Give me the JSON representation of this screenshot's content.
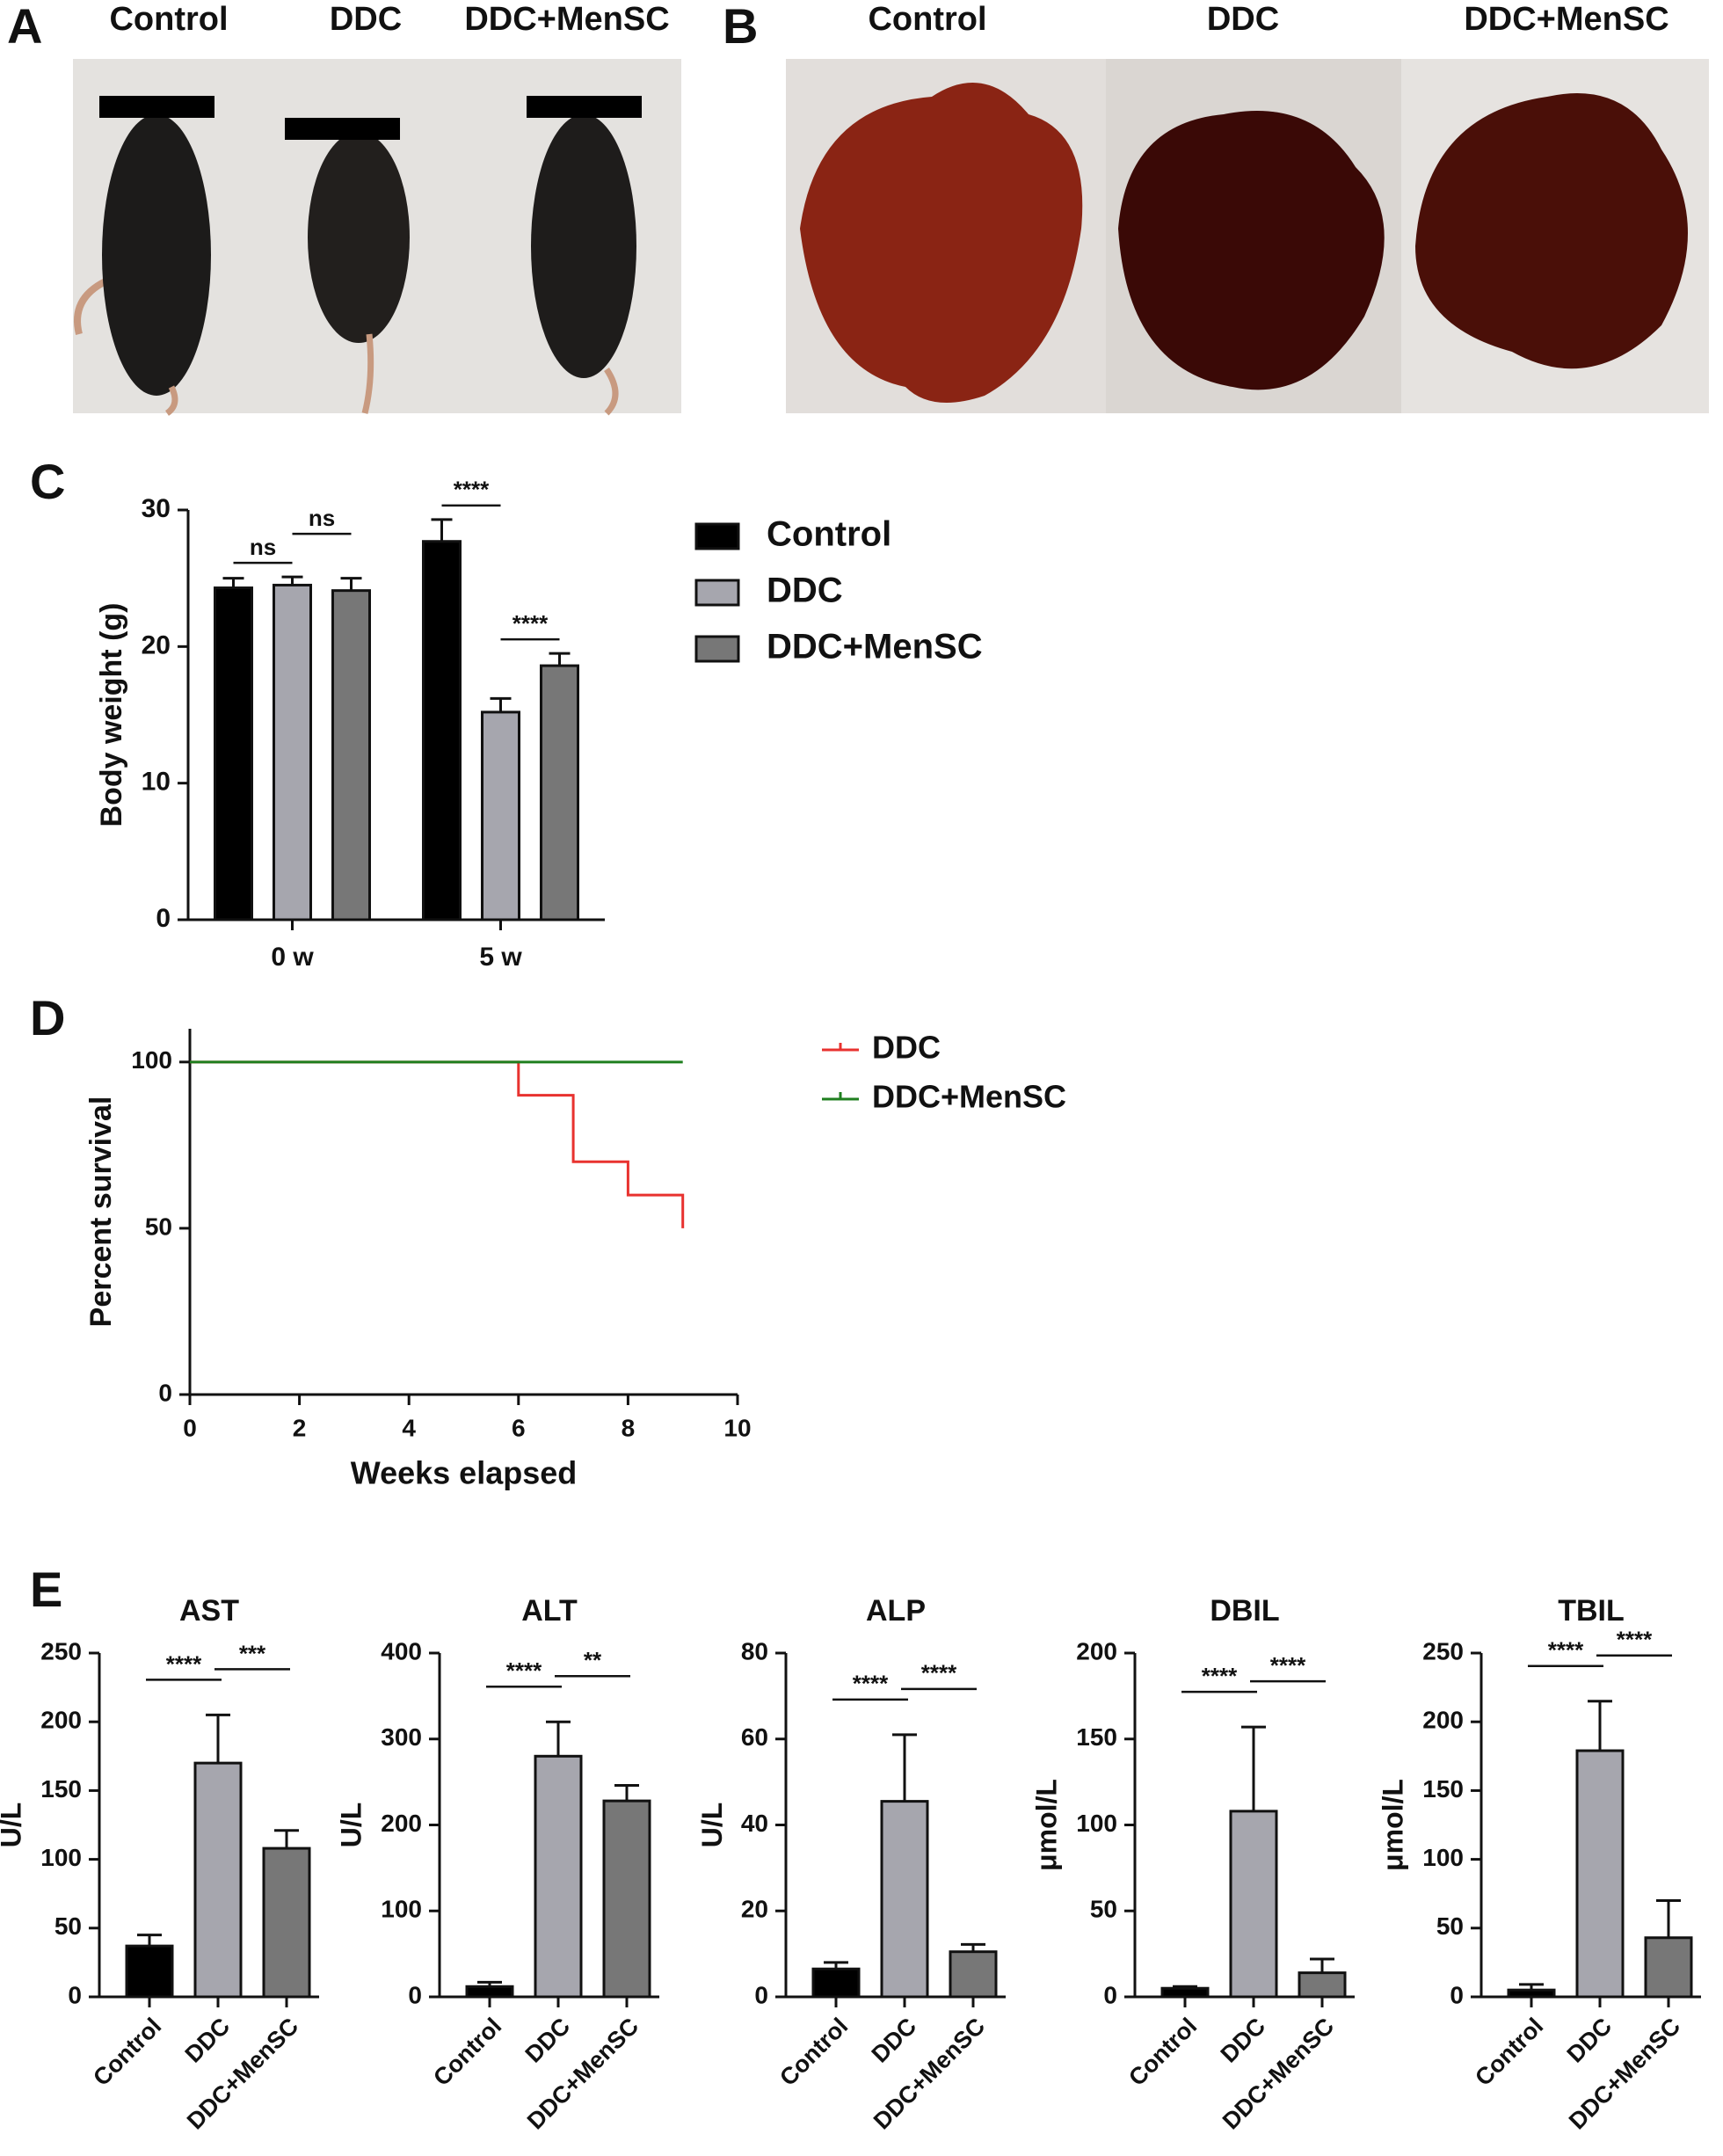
{
  "panels": {
    "A": {
      "label": "A",
      "captions": [
        "Control",
        "DDC",
        "DDC+MenSC"
      ]
    },
    "B": {
      "label": "B",
      "captions": [
        "Control",
        "DDC",
        "DDC+MenSC"
      ]
    },
    "C": {
      "label": "C"
    },
    "D": {
      "label": "D"
    },
    "E": {
      "label": "E"
    }
  },
  "chart_data": [
    {
      "type": "bar",
      "ylabel": "Body weight (g)",
      "categories": [
        "0 w",
        "5 w"
      ],
      "series": [
        {
          "name": "Control",
          "color": "#000000",
          "values": [
            24.3,
            27.7
          ],
          "errors": [
            0.7,
            1.6
          ]
        },
        {
          "name": "DDC",
          "color": "#a6a6ae",
          "values": [
            24.5,
            15.2
          ],
          "errors": [
            0.6,
            1.0
          ]
        },
        {
          "name": "DDC+MenSC",
          "color": "#777777",
          "values": [
            24.1,
            18.6
          ],
          "errors": [
            0.9,
            0.9
          ]
        }
      ],
      "ylim": [
        0,
        30
      ],
      "yticks": [
        0,
        10,
        20,
        30
      ],
      "annotations": [
        "ns",
        "ns",
        "****",
        "****"
      ]
    },
    {
      "type": "line",
      "xlabel": "Weeks elapsed",
      "ylabel": "Percent survival",
      "series": [
        {
          "name": "DDC",
          "color": "#e8322f",
          "x": [
            0,
            6,
            6,
            7,
            7,
            8,
            8,
            9,
            9
          ],
          "values": [
            100,
            100,
            90,
            90,
            70,
            70,
            60,
            60,
            50
          ]
        },
        {
          "name": "DDC+MenSC",
          "color": "#1f7f1f",
          "x": [
            0,
            9
          ],
          "values": [
            100,
            100
          ]
        }
      ],
      "xlim": [
        0,
        10
      ],
      "xticks": [
        0,
        2,
        4,
        6,
        8,
        10
      ],
      "ylim": [
        0,
        110
      ],
      "yticks": [
        0,
        50,
        100
      ]
    },
    {
      "type": "bar",
      "title": "AST",
      "ylabel": "U/L",
      "categories": [
        "Control",
        "DDC",
        "DDC+MenSC"
      ],
      "colors": [
        "#000000",
        "#a6a6ae",
        "#777777"
      ],
      "values": [
        37,
        170,
        108
      ],
      "errors": [
        8,
        35,
        13
      ],
      "ylim": [
        0,
        250
      ],
      "yticks": [
        0,
        50,
        100,
        150,
        200,
        250
      ],
      "annotations": [
        "****",
        "***"
      ]
    },
    {
      "type": "bar",
      "title": "ALT",
      "ylabel": "U/L",
      "categories": [
        "Control",
        "DDC",
        "DDC+MenSC"
      ],
      "colors": [
        "#000000",
        "#a6a6ae",
        "#777777"
      ],
      "values": [
        12,
        280,
        228
      ],
      "errors": [
        5,
        40,
        18
      ],
      "ylim": [
        0,
        400
      ],
      "yticks": [
        0,
        100,
        200,
        300,
        400
      ],
      "annotations": [
        "****",
        "**"
      ]
    },
    {
      "type": "bar",
      "title": "ALP",
      "ylabel": "U/L",
      "categories": [
        "Control",
        "DDC",
        "DDC+MenSC"
      ],
      "colors": [
        "#000000",
        "#a6a6ae",
        "#777777"
      ],
      "values": [
        6.5,
        45.5,
        10.5
      ],
      "errors": [
        1.5,
        15.5,
        1.7
      ],
      "ylim": [
        0,
        80
      ],
      "yticks": [
        0,
        20,
        40,
        60,
        80
      ],
      "annotations": [
        "****",
        "****"
      ]
    },
    {
      "type": "bar",
      "title": "DBIL",
      "ylabel": "μmol/L",
      "categories": [
        "Control",
        "DDC",
        "DDC+MenSC"
      ],
      "colors": [
        "#000000",
        "#a6a6ae",
        "#777777"
      ],
      "values": [
        5,
        108,
        14
      ],
      "errors": [
        1,
        49,
        8
      ],
      "ylim": [
        0,
        200
      ],
      "yticks": [
        0,
        50,
        100,
        150,
        200
      ],
      "annotations": [
        "****",
        "****"
      ]
    },
    {
      "type": "bar",
      "title": "TBIL",
      "ylabel": "μmol/L",
      "categories": [
        "Control",
        "DDC",
        "DDC+MenSC"
      ],
      "colors": [
        "#000000",
        "#a6a6ae",
        "#777777"
      ],
      "values": [
        5,
        179,
        43
      ],
      "errors": [
        4,
        36,
        27
      ],
      "ylim": [
        0,
        250
      ],
      "yticks": [
        0,
        50,
        100,
        150,
        200,
        250
      ],
      "annotations": [
        "****",
        "****"
      ]
    }
  ]
}
